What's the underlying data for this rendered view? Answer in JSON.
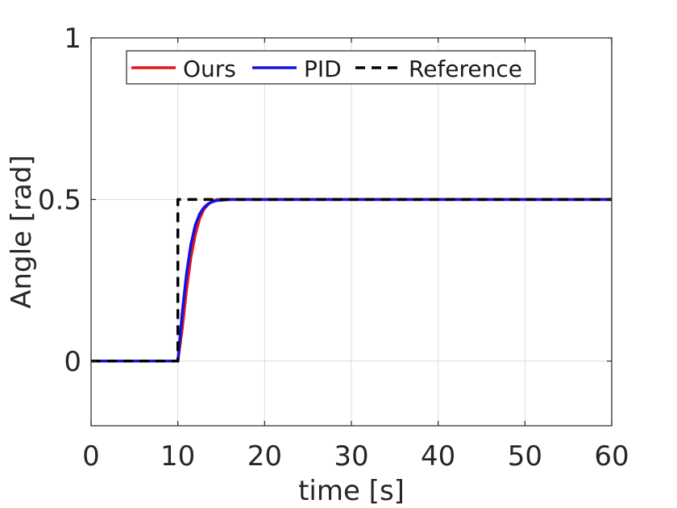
{
  "chart_data": {
    "type": "line",
    "title": "",
    "xlabel": "time [s]",
    "ylabel": "Angle [rad]",
    "xlim": [
      0,
      60
    ],
    "ylim": [
      -0.2,
      1
    ],
    "xticks": [
      0,
      10,
      20,
      30,
      40,
      50,
      60
    ],
    "yticks": [
      0,
      0.5,
      1
    ],
    "xtick_labels": [
      "0",
      "10",
      "20",
      "30",
      "40",
      "50",
      "60"
    ],
    "ytick_labels": [
      "0",
      "0.5",
      "1"
    ],
    "grid": true,
    "legend_position": "top",
    "series": [
      {
        "name": "Ours",
        "color": "#e8141b",
        "style": "solid",
        "x": [
          0,
          5,
          9.9,
          10,
          10.5,
          11,
          11.5,
          12,
          12.5,
          13,
          13.5,
          14,
          14.5,
          15,
          16,
          20,
          30,
          40,
          50,
          60
        ],
        "y": [
          0,
          0,
          0,
          0,
          0.1,
          0.22,
          0.32,
          0.39,
          0.44,
          0.47,
          0.485,
          0.495,
          0.5,
          0.5,
          0.5,
          0.5,
          0.5,
          0.5,
          0.5,
          0.5
        ]
      },
      {
        "name": "PID",
        "color": "#1111e0",
        "style": "solid",
        "x": [
          0,
          5,
          9.9,
          10,
          10.5,
          11,
          11.5,
          12,
          12.5,
          13,
          13.5,
          14,
          14.5,
          15,
          16,
          20,
          30,
          40,
          50,
          60
        ],
        "y": [
          0,
          0,
          0,
          0,
          0.15,
          0.27,
          0.36,
          0.42,
          0.455,
          0.475,
          0.487,
          0.493,
          0.497,
          0.498,
          0.5,
          0.5,
          0.5,
          0.5,
          0.5,
          0.5
        ]
      },
      {
        "name": "Reference",
        "color": "#000000",
        "style": "dashed",
        "x": [
          0,
          10,
          10,
          60
        ],
        "y": [
          0,
          0,
          0.5,
          0.5
        ]
      }
    ]
  }
}
